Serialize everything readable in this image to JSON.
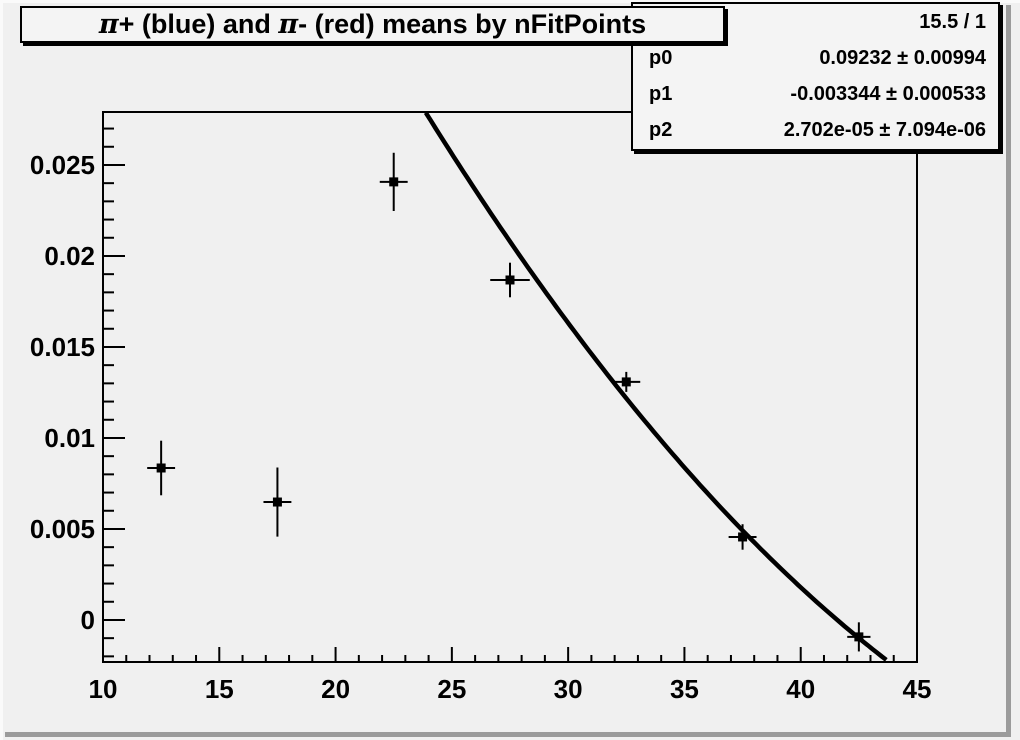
{
  "canvas": {
    "bg": "#f0f0f0",
    "bevel_highlight": "#fafafa",
    "bevel_shadow": "#9b9b9b",
    "frame_color": "#000000",
    "text_color": "#000000"
  },
  "title": {
    "text": "π+ (blue) and π- (red) means by nFitPoints"
  },
  "stats": {
    "chi2": "15.5 / 1",
    "rows": [
      {
        "label": "p0",
        "value": "0.09232 ± 0.00994"
      },
      {
        "label": "p1",
        "value": "-0.003344 ± 0.000533"
      },
      {
        "label": "p2",
        "value": "2.702e-05 ± 7.094e-06"
      }
    ]
  },
  "chart_data": {
    "type": "scatter",
    "title": "π+ (blue) and π- (red) means by nFitPoints",
    "xlabel": "",
    "ylabel": "",
    "xlim": [
      10,
      45
    ],
    "ylim": [
      -0.00231,
      0.02791
    ],
    "grid": false,
    "legend": "none",
    "x_major_ticks": [
      10,
      15,
      20,
      25,
      30,
      35,
      40,
      45
    ],
    "x_tick_labels": [
      "10",
      "15",
      "20",
      "25",
      "30",
      "35",
      "40",
      "45"
    ],
    "x_minor_step": 1,
    "y_major_ticks": [
      0,
      0.005,
      0.01,
      0.015,
      0.02,
      0.025
    ],
    "y_tick_labels": [
      "0",
      "0.005",
      "0.01",
      "0.015",
      "0.02",
      "0.025"
    ],
    "y_minor_step": 0.001,
    "series": [
      {
        "name": "pion means by nFitPoints",
        "marker": "filled-square",
        "color": "#000000",
        "x": [
          12.5,
          17.5,
          22.5,
          27.5,
          32.5,
          37.5,
          42.5
        ],
        "y": [
          0.00835,
          0.00648,
          0.02407,
          0.01868,
          0.01308,
          0.00456,
          -0.00093
        ],
        "xerr": [
          0.6,
          0.6,
          0.6,
          0.85,
          0.6,
          0.6,
          0.5
        ],
        "yerr": [
          0.0015,
          0.0019,
          0.0016,
          0.00095,
          0.00055,
          0.0007,
          0.0008
        ]
      }
    ],
    "fit_curve": {
      "type": "polynomial",
      "formula": "p0 + p1*x + p2*x^2",
      "p0": 0.09232,
      "p1": -0.003344,
      "p2": 2.702e-05,
      "x_start": 23.88,
      "x_end": 43.85,
      "color": "#000000"
    },
    "stats_box": {
      "chi2_over_ndf": "15.5 / 1",
      "params": [
        {
          "name": "p0",
          "value": 0.09232,
          "error": 0.00994
        },
        {
          "name": "p1",
          "value": -0.003344,
          "error": 0.000533
        },
        {
          "name": "p2",
          "value": 2.702e-05,
          "error": 7.094e-06
        }
      ]
    }
  }
}
